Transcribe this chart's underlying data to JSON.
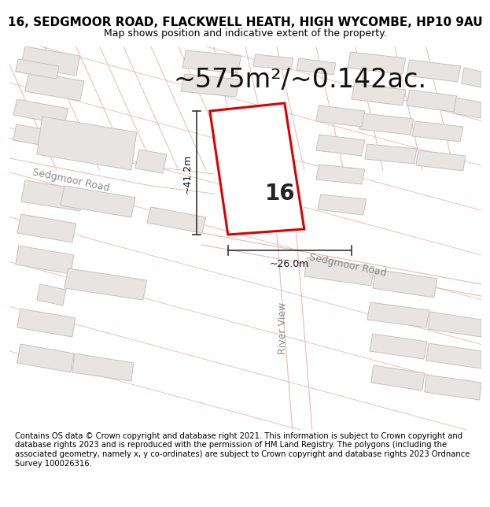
{
  "title_line1": "16, SEDGMOOR ROAD, FLACKWELL HEATH, HIGH WYCOMBE, HP10 9AU",
  "title_line2": "Map shows position and indicative extent of the property.",
  "area_label": "~575m²/~0.142ac.",
  "height_label": "~41.2m",
  "width_label": "~26.0m",
  "property_number": "16",
  "road_label_upper": "Sedgmoor Road",
  "road_label_lower": "Sedgmoor Road",
  "road_label_river": "River View",
  "footer_text": "Contains OS data © Crown copyright and database right 2021. This information is subject to Crown copyright and database rights 2023 and is reproduced with the permission of HM Land Registry. The polygons (including the associated geometry, namely x, y co-ordinates) are subject to Crown copyright and database rights 2023 Ordnance Survey 100026316.",
  "map_bg": "#f7f4f4",
  "road_line_color": "#e8b8b8",
  "building_fill": "#e8e4e4",
  "building_edge": "#c8c0c0",
  "red_plot_color": "#dd0000",
  "dim_color": "#333333",
  "road_fill": "#ede8e8",
  "title_fontsize": 11,
  "subtitle_fontsize": 9,
  "area_fontsize": 24,
  "road_label_fontsize": 9,
  "number_fontsize": 20,
  "footer_fontsize": 7.2
}
